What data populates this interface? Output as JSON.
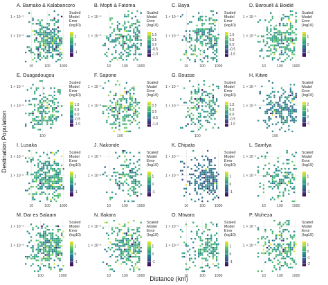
{
  "figure": {
    "ylabel": "Destination Population",
    "xlabel": "Distance (km)",
    "legend_title": [
      "Scaled",
      "Model",
      "Error",
      "(log10)"
    ]
  },
  "colors": {
    "viridis": [
      "#440154",
      "#3b528b",
      "#21908d",
      "#5dc963",
      "#fde725"
    ],
    "grid": "#e6e6e6"
  },
  "chart_data": [
    {
      "type": "heatmap",
      "title": "A. Bamako & Kalabancoro",
      "x_ticks": [
        "10",
        "100",
        "1000"
      ],
      "y_ticks": [
        "1 × 10⁻⁵",
        "1 × 10⁻⁶"
      ],
      "legend_ticks": [
        "1",
        "0",
        "-1"
      ],
      "legend_range": [
        -1.6,
        1.6
      ],
      "x_range": [
        0.6,
        3.1
      ],
      "x_core": [
        1.8,
        2.7
      ],
      "density": 0.75,
      "mean": 0.1,
      "spread": 0.55,
      "seed": 11
    },
    {
      "type": "heatmap",
      "title": "B. Mopti & Fatoma",
      "x_ticks": [
        "10",
        "100",
        "1000"
      ],
      "y_ticks": [
        "1 × 10⁻⁵",
        "1 × 10⁻⁶"
      ],
      "legend_ticks": [
        "1.0",
        "0.5",
        "0.0",
        "-0.5",
        "-1.0"
      ],
      "legend_range": [
        -1.3,
        1.3
      ],
      "x_range": [
        0.6,
        3.1
      ],
      "x_core": [
        2.2,
        2.8
      ],
      "density": 0.55,
      "mean": 0.1,
      "spread": 0.4,
      "seed": 23
    },
    {
      "type": "heatmap",
      "title": "C. Baya",
      "x_ticks": [
        "10",
        "100",
        "1000"
      ],
      "y_ticks": [
        "1 × 10⁻⁵",
        "1 × 10⁻⁶"
      ],
      "legend_ticks": [
        "1.0",
        "0.5",
        "0.0",
        "-0.5",
        "-1.0"
      ],
      "legend_range": [
        -1.3,
        1.3
      ],
      "x_range": [
        0.6,
        3.1
      ],
      "x_core": [
        2.0,
        2.8
      ],
      "density": 0.6,
      "mean": 0.1,
      "spread": 0.45,
      "seed": 37
    },
    {
      "type": "heatmap",
      "title": "D. Barouéli & Boidié",
      "x_ticks": [
        "10",
        "100",
        "1000"
      ],
      "y_ticks": [
        "1 × 10⁻⁵",
        "1 × 10⁻⁶"
      ],
      "legend_ticks": [
        "1",
        "0",
        "-1"
      ],
      "legend_range": [
        -1.6,
        1.6
      ],
      "x_range": [
        0.6,
        3.1
      ],
      "x_core": [
        2.0,
        2.8
      ],
      "density": 0.7,
      "mean": 0.25,
      "spread": 0.5,
      "seed": 41
    },
    {
      "type": "heatmap",
      "title": "E. Ouagadougou",
      "x_ticks": [
        "100"
      ],
      "y_ticks": [
        "1 × 10⁻⁵",
        "1 × 10⁻⁶"
      ],
      "legend_ticks": [
        "1.0",
        "0.5",
        "0.0",
        "-0.5",
        "-1.0"
      ],
      "legend_range": [
        -1.3,
        1.3
      ],
      "x_range": [
        1.3,
        2.9
      ],
      "x_core": [
        1.8,
        2.4
      ],
      "density": 0.55,
      "mean": 0.2,
      "spread": 0.4,
      "seed": 53
    },
    {
      "type": "heatmap",
      "title": "F. Sapone",
      "x_ticks": [
        "100"
      ],
      "y_ticks": [
        "1 × 10⁻⁵",
        "1 × 10⁻⁶"
      ],
      "legend_ticks": [
        "0.5",
        "0.0",
        "-0.5",
        "-1.0"
      ],
      "legend_range": [
        -1.2,
        0.8
      ],
      "x_range": [
        1.3,
        2.9
      ],
      "x_core": [
        1.9,
        2.6
      ],
      "density": 0.5,
      "mean": 0.0,
      "spread": 0.4,
      "seed": 67
    },
    {
      "type": "heatmap",
      "title": "G. Bousse",
      "x_ticks": [
        "100"
      ],
      "y_ticks": [
        "1 × 10⁻⁵",
        "1 × 10⁻⁶"
      ],
      "legend_ticks": [
        "1.0",
        "0.5",
        "0.0",
        "-0.5",
        "-1.0"
      ],
      "legend_range": [
        -1.3,
        1.3
      ],
      "x_range": [
        1.3,
        2.9
      ],
      "x_core": [
        2.0,
        2.6
      ],
      "density": 0.45,
      "mean": 0.1,
      "spread": 0.4,
      "seed": 71
    },
    {
      "type": "heatmap",
      "title": "H. Kitwe",
      "x_ticks": [
        "100"
      ],
      "y_ticks": [
        "1 × 10⁻⁵",
        "1 × 10⁻⁶"
      ],
      "legend_ticks": [
        "2",
        "1",
        "0",
        "-1"
      ],
      "legend_range": [
        -1.6,
        2.4
      ],
      "x_range": [
        1.3,
        2.9
      ],
      "x_core": [
        2.2,
        2.8
      ],
      "density": 0.6,
      "mean": 0.2,
      "spread": 0.6,
      "seed": 83
    },
    {
      "type": "heatmap",
      "title": "I. Lusaka",
      "x_ticks": [
        "10",
        "100",
        "1000"
      ],
      "y_ticks": [
        "1 × 10⁻⁵",
        "1 × 10⁻⁶"
      ],
      "legend_ticks": [
        "1",
        "0",
        "-1"
      ],
      "legend_range": [
        -1.6,
        1.6
      ],
      "x_range": [
        0.6,
        3.1
      ],
      "x_core": [
        1.9,
        2.8
      ],
      "density": 0.8,
      "mean": 0.2,
      "spread": 0.5,
      "seed": 97
    },
    {
      "type": "heatmap",
      "title": "J. Nakonde",
      "x_ticks": [
        "10",
        "100",
        "1000"
      ],
      "y_ticks": [
        "1 × 10⁻⁵",
        "1 × 10⁻⁶"
      ],
      "legend_ticks": [
        "1",
        "0",
        "-1"
      ],
      "legend_range": [
        -1.6,
        1.6
      ],
      "x_range": [
        0.6,
        3.1
      ],
      "x_core": [
        2.5,
        2.95
      ],
      "density": 0.45,
      "mean": 0.2,
      "spread": 0.5,
      "seed": 101
    },
    {
      "type": "heatmap",
      "title": "K. Chipata",
      "x_ticks": [
        "10",
        "100",
        "1000"
      ],
      "y_ticks": [
        "1 × 10⁻⁵",
        "1 × 10⁻⁶"
      ],
      "legend_ticks": [
        "1",
        "0",
        "-1"
      ],
      "legend_range": [
        -1.6,
        1.6
      ],
      "x_range": [
        0.6,
        3.1
      ],
      "x_core": [
        2.4,
        2.9
      ],
      "density": 0.7,
      "mean": -0.4,
      "spread": 0.5,
      "seed": 113
    },
    {
      "type": "heatmap",
      "title": "L. Samfya",
      "x_ticks": [
        "10",
        "100",
        "1000"
      ],
      "y_ticks": [
        "1 × 10⁻⁵",
        "1 × 10⁻⁶"
      ],
      "legend_ticks": [
        "1",
        "0",
        "-1"
      ],
      "legend_range": [
        -1.6,
        1.6
      ],
      "x_range": [
        0.6,
        3.1
      ],
      "x_core": [
        2.3,
        2.9
      ],
      "density": 0.5,
      "mean": 0.2,
      "spread": 0.5,
      "seed": 127
    },
    {
      "type": "heatmap",
      "title": "M. Dar es Salaam",
      "x_ticks": [
        "100",
        "1000"
      ],
      "y_ticks": [
        "1 × 10⁻⁵",
        "1 × 10⁻⁶"
      ],
      "legend_ticks": [
        "1",
        "0",
        "-1"
      ],
      "legend_range": [
        -1.6,
        1.6
      ],
      "x_range": [
        1.3,
        3.1
      ],
      "x_core": [
        2.2,
        2.9
      ],
      "density": 0.8,
      "mean": 0.2,
      "spread": 0.5,
      "seed": 131
    },
    {
      "type": "heatmap",
      "title": "N. Ifakara",
      "x_ticks": [
        "10",
        "100",
        "1000"
      ],
      "y_ticks": [
        "1 × 10⁻⁵",
        "1 × 10⁻⁶"
      ],
      "legend_ticks": [
        "1",
        "0",
        "-1"
      ],
      "legend_range": [
        -1.6,
        1.6
      ],
      "x_range": [
        0.6,
        3.1
      ],
      "x_core": [
        2.2,
        2.9
      ],
      "density": 0.75,
      "mean": 0.3,
      "spread": 0.5,
      "seed": 139
    },
    {
      "type": "heatmap",
      "title": "O. Mtwara",
      "x_ticks": [
        "10",
        "100",
        "1000"
      ],
      "y_ticks": [
        "1 × 10⁻⁵",
        "1 × 10⁻⁶"
      ],
      "legend_ticks": [
        "1",
        "0",
        "-1"
      ],
      "legend_range": [
        -1.6,
        1.6
      ],
      "x_range": [
        0.6,
        3.1
      ],
      "x_core": [
        2.6,
        2.95
      ],
      "density": 0.55,
      "mean": 0.2,
      "spread": 0.5,
      "seed": 149
    },
    {
      "type": "heatmap",
      "title": "P. Muheza",
      "x_ticks": [
        "10",
        "100",
        "1000"
      ],
      "y_ticks": [
        "1 × 10⁻⁵",
        "1 × 10⁻⁶"
      ],
      "legend_ticks": [
        "1",
        "0",
        "-1",
        "-2"
      ],
      "legend_range": [
        -2.4,
        1.6
      ],
      "x_range": [
        0.6,
        3.1
      ],
      "x_core": [
        2.3,
        2.9
      ],
      "density": 0.6,
      "mean": 0.0,
      "spread": 0.6,
      "seed": 157
    }
  ]
}
